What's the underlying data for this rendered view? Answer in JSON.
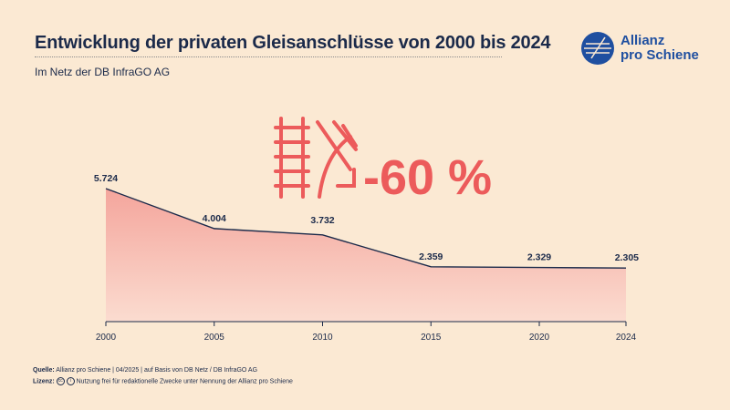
{
  "title": "Entwicklung der privaten Gleisanschlüsse von 2000 bis 2024",
  "subtitle": "Im Netz der DB InfraGO AG",
  "logo": {
    "line1": "Allianz",
    "line2": "pro Schiene"
  },
  "colors": {
    "navy": "#1b2a4a",
    "accent": "#ec5b5b",
    "background": "#fbe9d3",
    "logo_blue": "#1f4fa0"
  },
  "highlight": {
    "label": "-60 %",
    "icon": "rail-track-decline-icon"
  },
  "chart_data": {
    "type": "area",
    "title": "Entwicklung der privaten Gleisanschlüsse von 2000 bis 2024",
    "x": [
      2000,
      2005,
      2010,
      2015,
      2020,
      2024
    ],
    "values": [
      5724,
      4004,
      3732,
      2359,
      2329,
      2305
    ],
    "data_labels": [
      "5.724",
      "4.004",
      "3.732",
      "2.359",
      "2.329",
      "2.305"
    ],
    "tick_labels": [
      "2000",
      "2005",
      "2010",
      "2015",
      "2020",
      "2024"
    ],
    "ylim": [
      0,
      5724
    ],
    "xlabel": "",
    "ylabel": "",
    "grid": false
  },
  "footer": {
    "source_label": "Quelle:",
    "source_text": "Allianz pro Schiene | 04/2025 | auf Basis von DB Netz / DB InfraGO AG",
    "license_label": "Lizenz:",
    "license_text": "Nutzung frei für redaktionelle Zwecke unter Nennung der Allianz pro Schiene"
  }
}
